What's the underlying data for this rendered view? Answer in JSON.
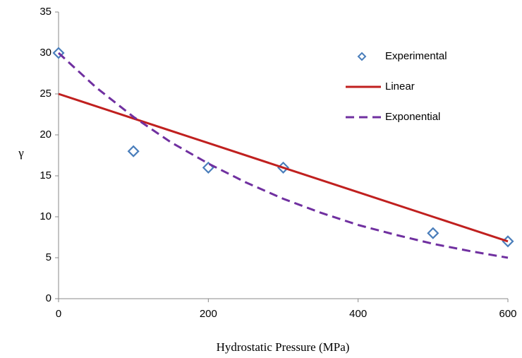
{
  "chart_data": {
    "type": "line",
    "xlabel": "Hydrostatic Pressure (MPa)",
    "ylabel": "γ",
    "xlim": [
      0,
      600
    ],
    "xticks": [
      0,
      200,
      400,
      600
    ],
    "ylim": [
      0,
      35
    ],
    "yticks": [
      0,
      5,
      10,
      15,
      20,
      25,
      30,
      35
    ],
    "grid": false,
    "legend": "upper right",
    "series": [
      {
        "name": "Experimental",
        "style": "markers",
        "color": "#4a7ebb",
        "x": [
          0,
          100,
          200,
          300,
          500,
          600
        ],
        "values": [
          30,
          18,
          16,
          16,
          8,
          7
        ]
      },
      {
        "name": "Linear",
        "style": "solid",
        "color": "#c0201f",
        "x": [
          0,
          100,
          200,
          300,
          400,
          500,
          600
        ],
        "values": [
          25,
          22,
          19,
          16,
          13,
          10,
          7
        ]
      },
      {
        "name": "Exponential",
        "style": "dashed",
        "color": "#7030a0",
        "x": [
          0,
          50,
          100,
          150,
          200,
          250,
          300,
          350,
          400,
          450,
          500,
          550,
          600
        ],
        "values": [
          30,
          25.8,
          22.2,
          19.1,
          16.5,
          14.2,
          12.2,
          10.5,
          9.0,
          7.8,
          6.7,
          5.8,
          5.0
        ]
      }
    ]
  }
}
